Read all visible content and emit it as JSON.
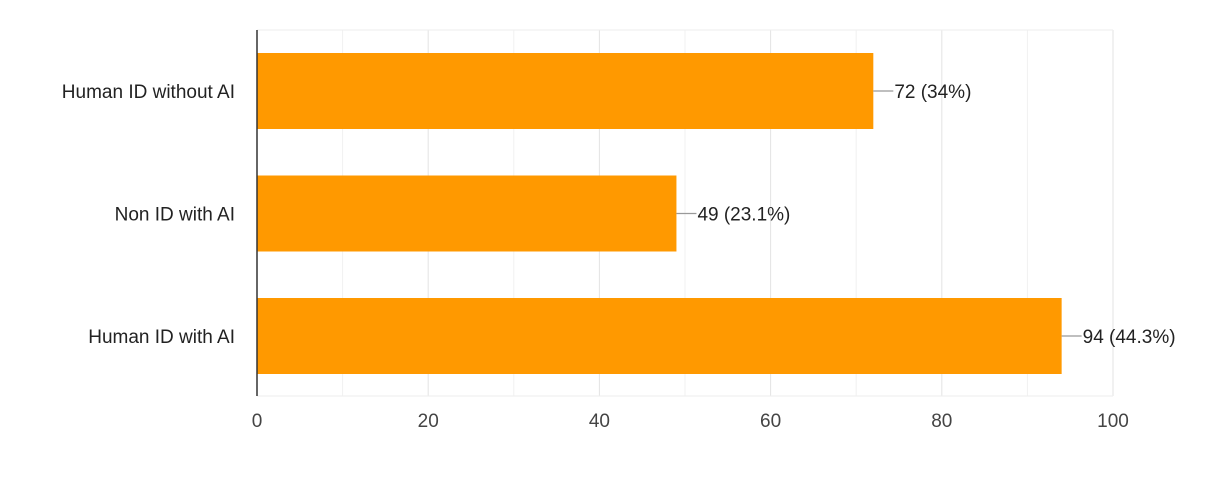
{
  "chart_data": {
    "type": "bar",
    "orientation": "horizontal",
    "categories": [
      "Human ID without AI",
      "Non ID with AI",
      "Human ID with AI"
    ],
    "values": [
      72,
      49,
      94
    ],
    "value_labels": [
      "72 (34%)",
      "49 (23.1%)",
      "94 (44.3%)"
    ],
    "xlim": [
      0,
      100
    ],
    "x_ticks": [
      0,
      20,
      40,
      60,
      80,
      100
    ],
    "grid": true,
    "bar_color": "#FF9900",
    "title": "",
    "xlabel": "",
    "ylabel": ""
  }
}
